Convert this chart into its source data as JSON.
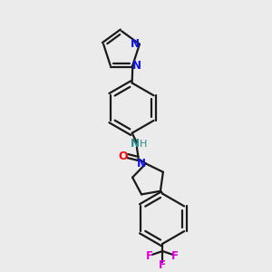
{
  "background_color": "#ebebeb",
  "bond_color": "#1a1a1a",
  "nitrogen_color": "#1010ee",
  "oxygen_color": "#ee1010",
  "fluorine_color": "#dd00dd",
  "nh_color": "#2a8a8a",
  "figsize": [
    3.0,
    3.0
  ],
  "dpi": 100,
  "xlim": [
    0,
    10
  ],
  "ylim": [
    0,
    10
  ]
}
